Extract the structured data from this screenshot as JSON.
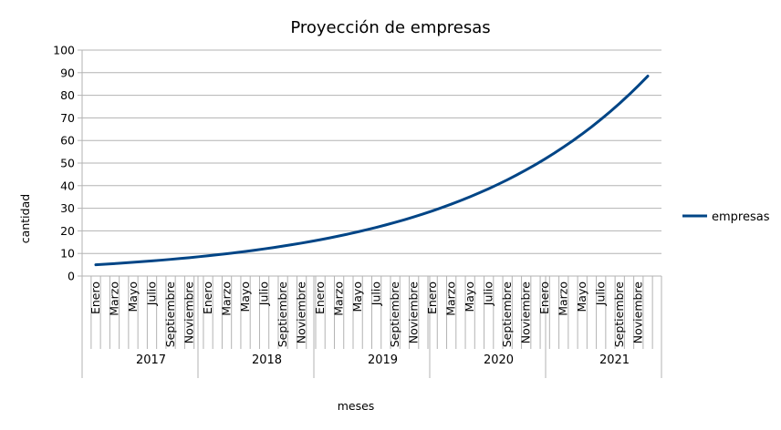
{
  "chart_data": {
    "type": "line",
    "title": "Proyección de empresas",
    "xlabel": "meses",
    "ylabel": "cantidad",
    "ylim": [
      0,
      100
    ],
    "yticks": [
      0,
      10,
      20,
      30,
      40,
      50,
      60,
      70,
      80,
      90,
      100
    ],
    "grid": "horizontal",
    "legend_position": "right",
    "years": [
      "2017",
      "2018",
      "2019",
      "2020",
      "2021"
    ],
    "month_labels": [
      "Enero",
      "Marzo",
      "Mayo",
      "Julio",
      "Septiembre",
      "Noviembre"
    ],
    "series": [
      {
        "name": "empresas",
        "color": "#004586",
        "start": 5,
        "end": 88.5,
        "points_count": 60,
        "sample_values": {
          "2017-Enero": 5,
          "2018-Enero": 8.5,
          "2019-Enero": 15.5,
          "2020-Enero": 27.5,
          "2021-Enero": 49,
          "2021-Diciembre": 88.5
        }
      }
    ]
  }
}
